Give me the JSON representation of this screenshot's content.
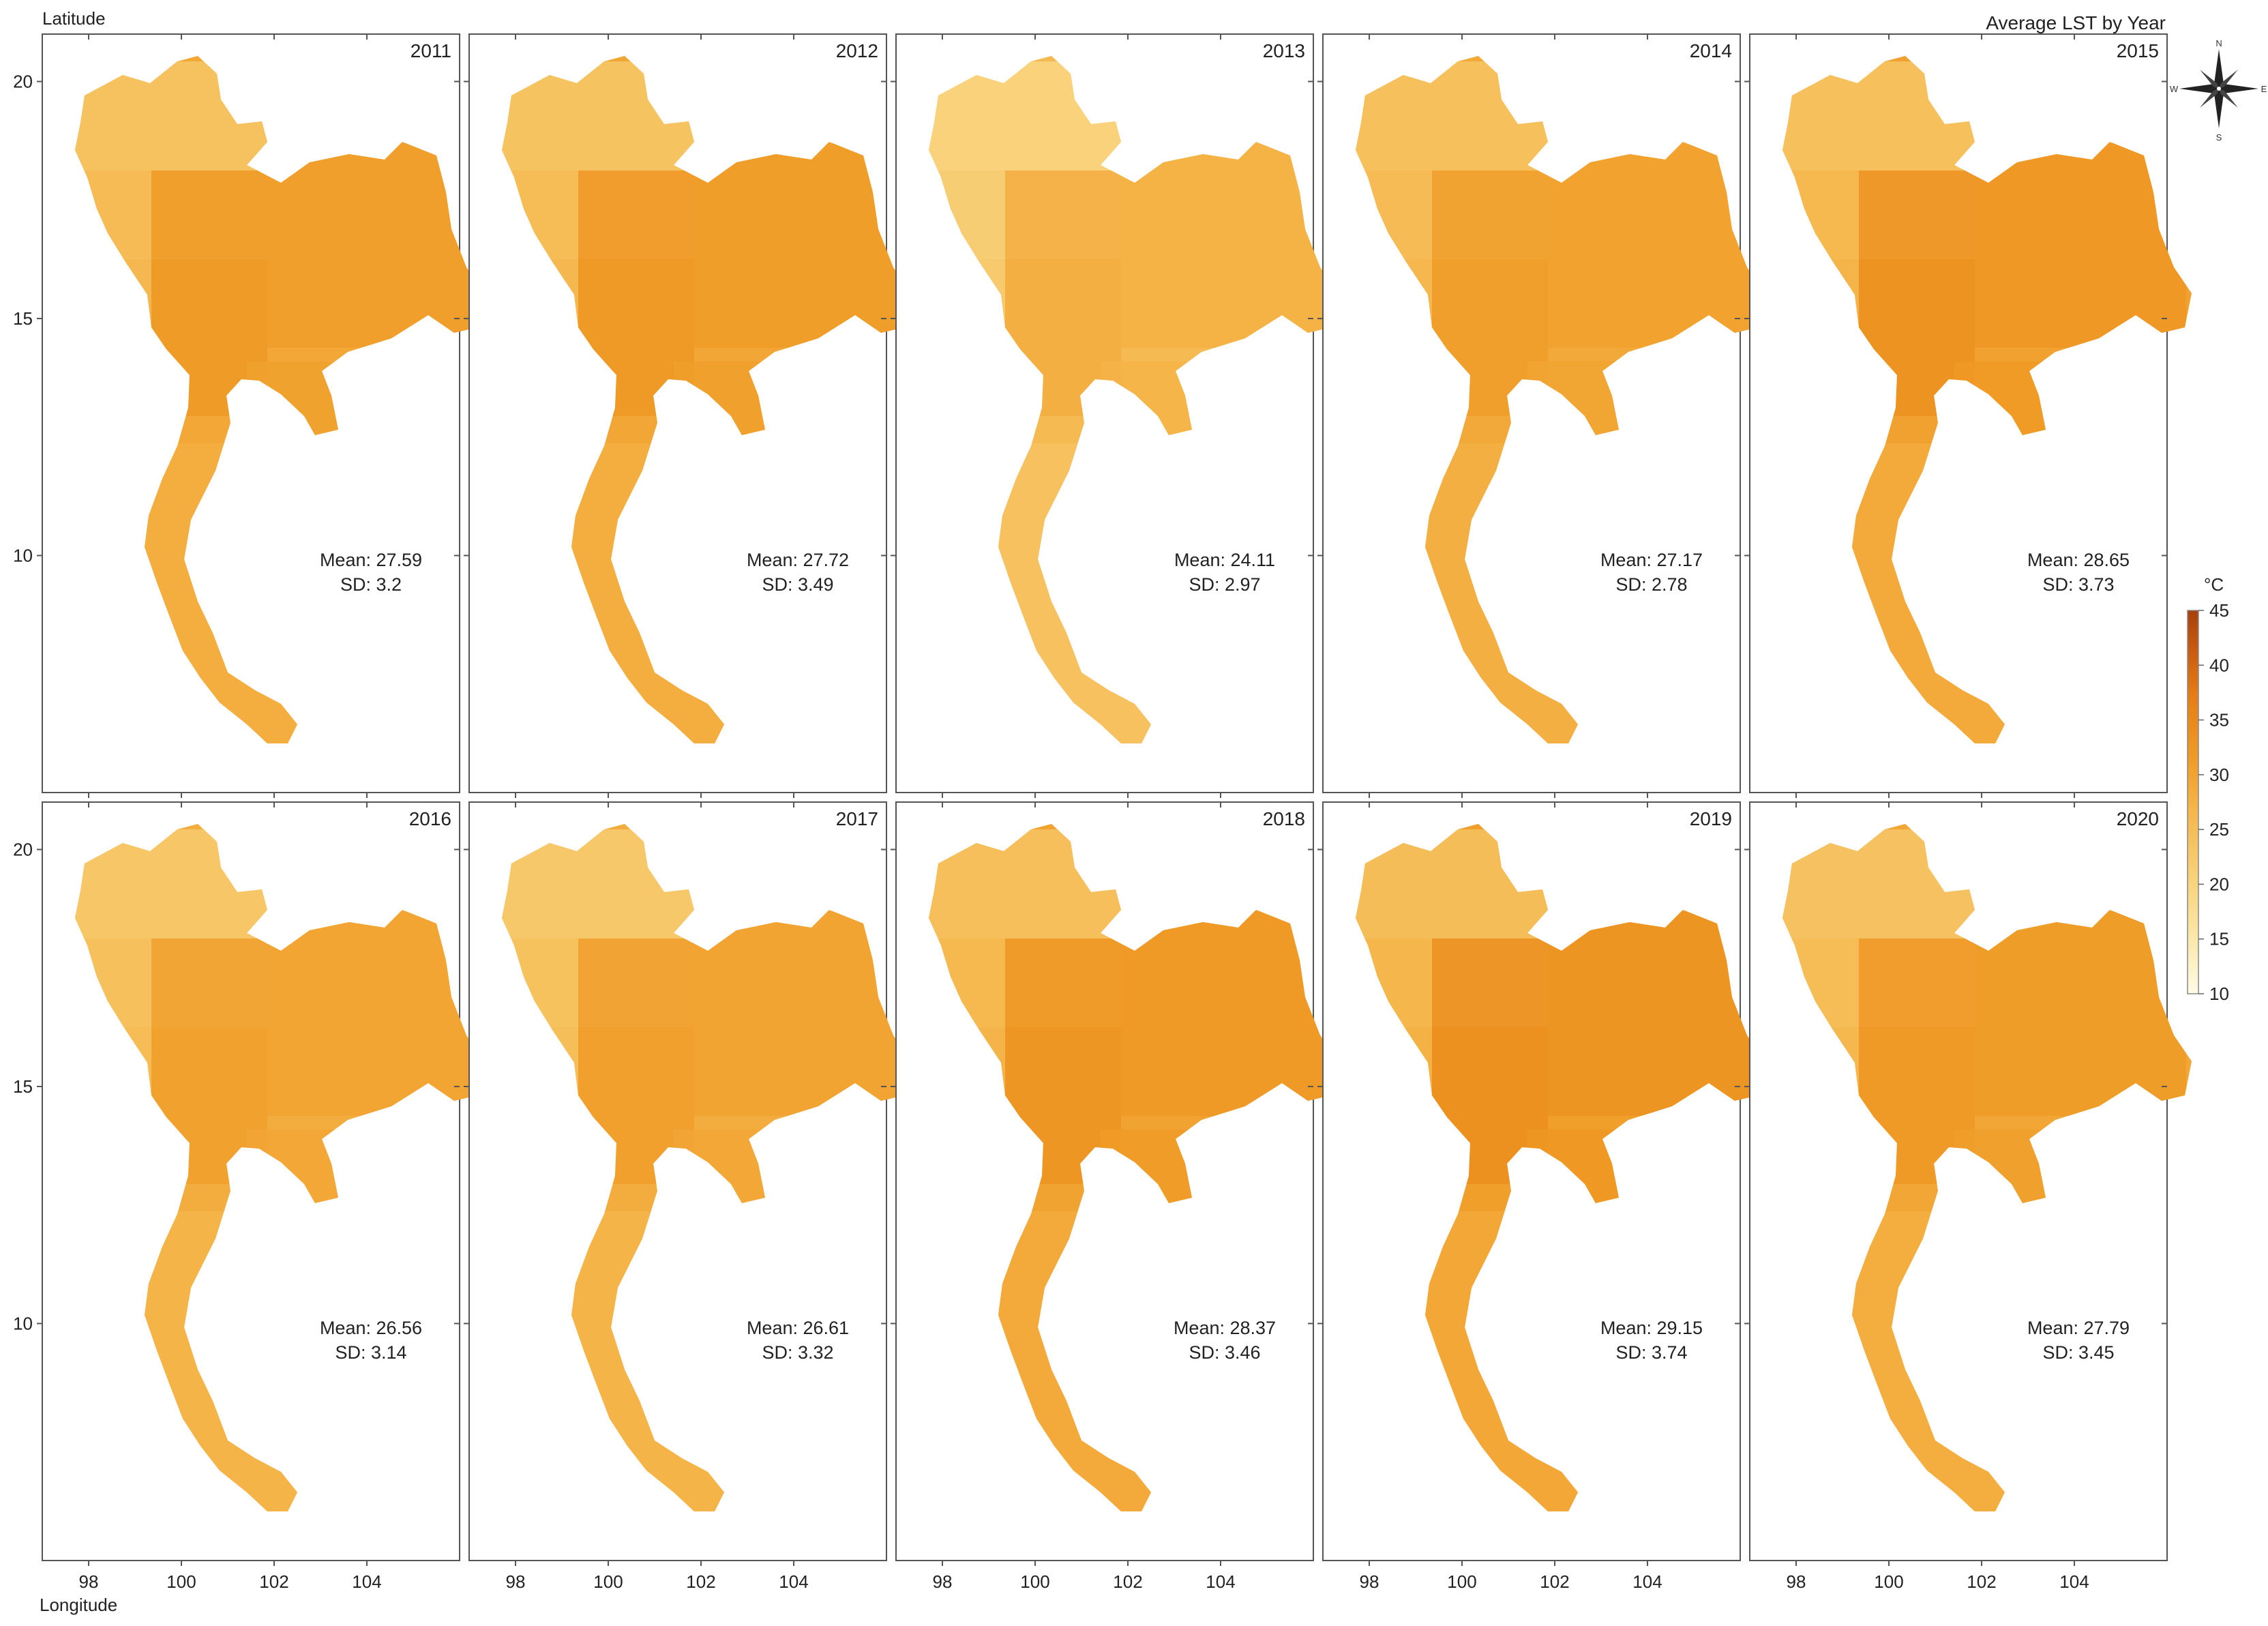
{
  "figure": {
    "title": "Average LST by Year",
    "y_axis_label": "Latitude",
    "x_axis_label": "Longitude"
  },
  "axes": {
    "lon_ticks": [
      98,
      100,
      102,
      104
    ],
    "lat_ticks": [
      20,
      15,
      10
    ],
    "lon_range": [
      97,
      106
    ],
    "lat_range": [
      5,
      21
    ]
  },
  "north_arrow": {
    "n": "N",
    "s": "S",
    "e": "E",
    "w": "W"
  },
  "legend": {
    "unit": "°C",
    "ticks": [
      45,
      40,
      35,
      30,
      25,
      20,
      15,
      10
    ],
    "range": [
      10,
      45
    ],
    "colors": [
      "#fffbe6",
      "#fbe7a8",
      "#f8d27a",
      "#f5b54a",
      "#ef9a25",
      "#e57d16",
      "#c75a10",
      "#a8400c"
    ]
  },
  "panels": [
    {
      "year": "2011",
      "mean_label": "Mean: 27.59",
      "sd_label": "SD: 3.2",
      "mean": 27.59,
      "sd": 3.2
    },
    {
      "year": "2012",
      "mean_label": "Mean: 27.72",
      "sd_label": "SD: 3.49",
      "mean": 27.72,
      "sd": 3.49
    },
    {
      "year": "2013",
      "mean_label": "Mean: 24.11",
      "sd_label": "SD: 2.97",
      "mean": 24.11,
      "sd": 2.97
    },
    {
      "year": "2014",
      "mean_label": "Mean: 27.17",
      "sd_label": "SD: 2.78",
      "mean": 27.17,
      "sd": 2.78
    },
    {
      "year": "2015",
      "mean_label": "Mean: 28.65",
      "sd_label": "SD: 3.73",
      "mean": 28.65,
      "sd": 3.73
    },
    {
      "year": "2016",
      "mean_label": "Mean: 26.56",
      "sd_label": "SD: 3.14",
      "mean": 26.56,
      "sd": 3.14
    },
    {
      "year": "2017",
      "mean_label": "Mean: 26.61",
      "sd_label": "SD: 3.32",
      "mean": 26.61,
      "sd": 3.32
    },
    {
      "year": "2018",
      "mean_label": "Mean: 28.37",
      "sd_label": "SD: 3.46",
      "mean": 28.37,
      "sd": 3.46
    },
    {
      "year": "2019",
      "mean_label": "Mean: 29.15",
      "sd_label": "SD: 3.74",
      "mean": 29.15,
      "sd": 3.74
    },
    {
      "year": "2020",
      "mean_label": "Mean: 27.79",
      "sd_label": "SD: 3.45",
      "mean": 27.79,
      "sd": 3.45
    }
  ]
}
